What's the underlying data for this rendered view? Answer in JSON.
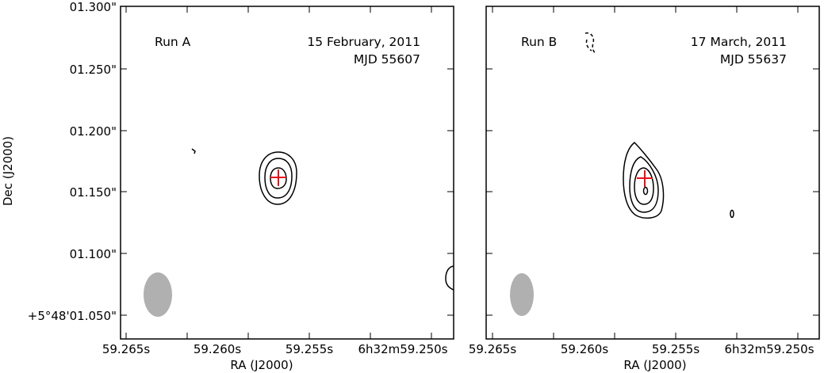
{
  "chart_data": [
    {
      "type": "contour",
      "panel": "A",
      "run_label": "Run A",
      "date_label": "15 February, 2011",
      "mjd_label": "MJD 55607",
      "xlabel": "RA (J2000)",
      "ylabel": "Dec (J2000)",
      "x_ticks": [
        "59.265s",
        "59.260s",
        "59.255s",
        "6h32m59.250s"
      ],
      "y_ticks": [
        "+5°48'01.050\"",
        "01.100\"",
        "01.150\"",
        "01.200\"",
        "01.250\"",
        "01.300\""
      ],
      "grid": false,
      "marker": {
        "symbol": "+",
        "color": "#e8101a"
      },
      "beam_color": "#b0b0b0",
      "contour_color": "#000000"
    },
    {
      "type": "contour",
      "panel": "B",
      "run_label": "Run B",
      "date_label": "17 March, 2011",
      "mjd_label": "MJD 55637",
      "xlabel": "RA (J2000)",
      "ylabel": "",
      "x_ticks": [
        "59.265s",
        "59.260s",
        "59.255s",
        "6h32m59.250s"
      ],
      "y_ticks": [],
      "grid": false,
      "marker": {
        "symbol": "+",
        "color": "#e8101a"
      },
      "beam_color": "#b0b0b0",
      "contour_color": "#000000"
    }
  ]
}
